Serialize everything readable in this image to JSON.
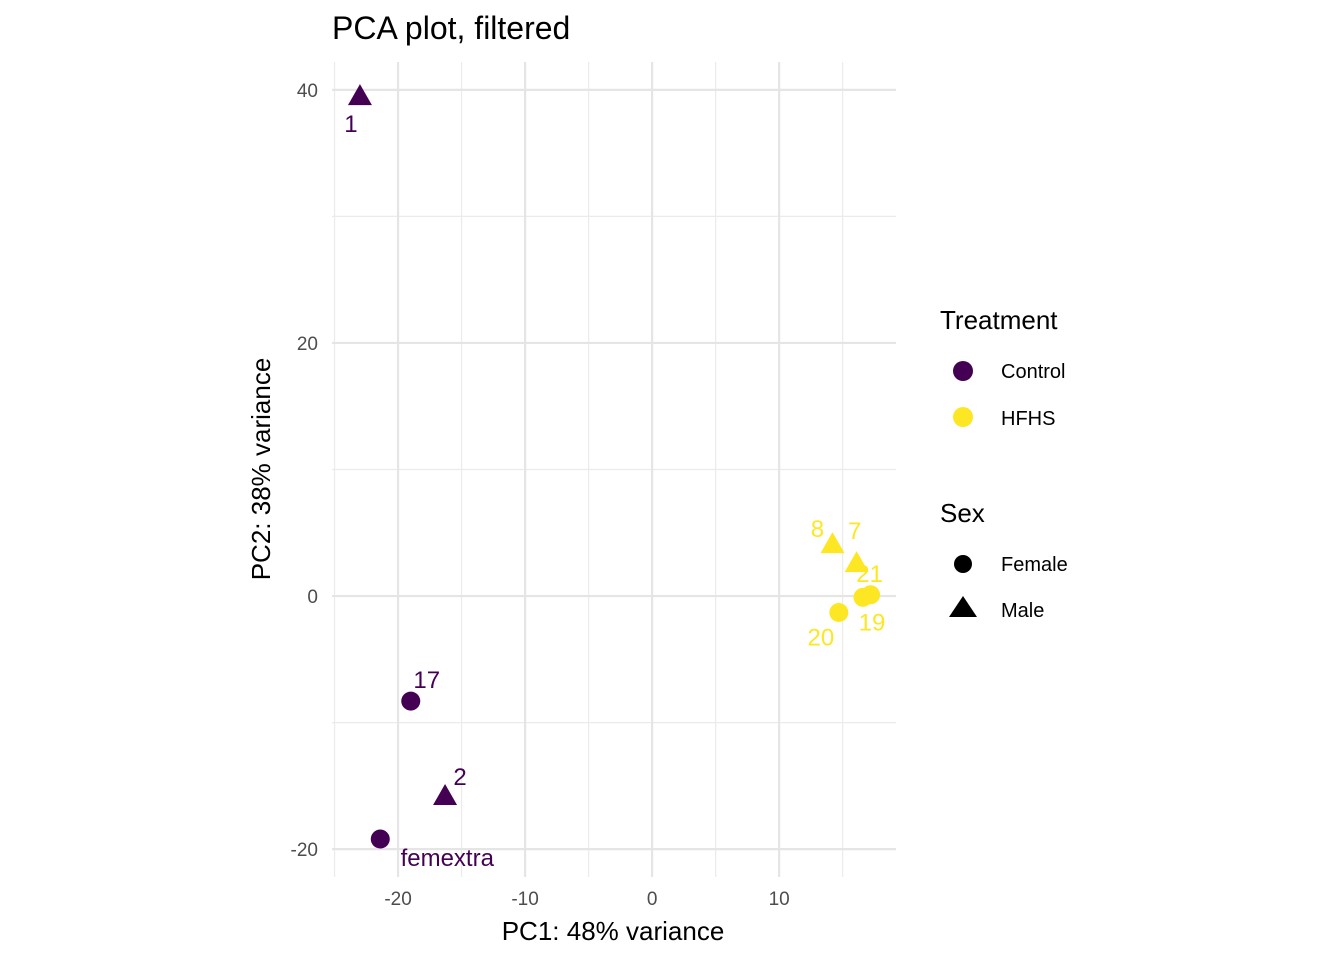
{
  "chart_data": {
    "type": "scatter",
    "title": "PCA plot, filtered",
    "xlabel": "PC1: 48% variance",
    "ylabel": "PC2: 38% variance",
    "xlim": [
      -25.2,
      19.2
    ],
    "ylim": [
      -22.2,
      42.2
    ],
    "x_ticks": [
      -20,
      -10,
      0,
      10
    ],
    "x_tick_labels": [
      "-20",
      "-10",
      "0",
      "10"
    ],
    "y_ticks": [
      -20,
      0,
      20,
      40
    ],
    "y_tick_labels": [
      "-20",
      "0",
      "20",
      "40"
    ],
    "grid": true,
    "legend_position": "right",
    "legends": [
      {
        "title": "Treatment",
        "entries": [
          {
            "label": "Control",
            "color": "#440154"
          },
          {
            "label": "HFHS",
            "color": "#FDE725"
          }
        ]
      },
      {
        "title": "Sex",
        "entries": [
          {
            "label": "Female",
            "shape": "circle"
          },
          {
            "label": "Male",
            "shape": "triangle"
          }
        ]
      }
    ],
    "points": [
      {
        "label": "1",
        "x": -23.0,
        "y": 39.5,
        "treatment": "Control",
        "sex": "Male"
      },
      {
        "label": "17",
        "x": -19.0,
        "y": -8.3,
        "treatment": "Control",
        "sex": "Female"
      },
      {
        "label": "2",
        "x": -16.3,
        "y": -15.8,
        "treatment": "Control",
        "sex": "Male"
      },
      {
        "label": "femextra",
        "x": -21.4,
        "y": -19.2,
        "treatment": "Control",
        "sex": "Female"
      },
      {
        "label": "8",
        "x": 14.2,
        "y": 4.1,
        "treatment": "HFHS",
        "sex": "Male"
      },
      {
        "label": "7",
        "x": 16.1,
        "y": 2.6,
        "treatment": "HFHS",
        "sex": "Male"
      },
      {
        "label": "21",
        "x": 17.2,
        "y": 0.1,
        "treatment": "HFHS",
        "sex": "Female"
      },
      {
        "label": "19",
        "x": 16.6,
        "y": -0.1,
        "treatment": "HFHS",
        "sex": "Female"
      },
      {
        "label": "20",
        "x": 14.7,
        "y": -1.3,
        "treatment": "HFHS",
        "sex": "Female"
      }
    ]
  }
}
